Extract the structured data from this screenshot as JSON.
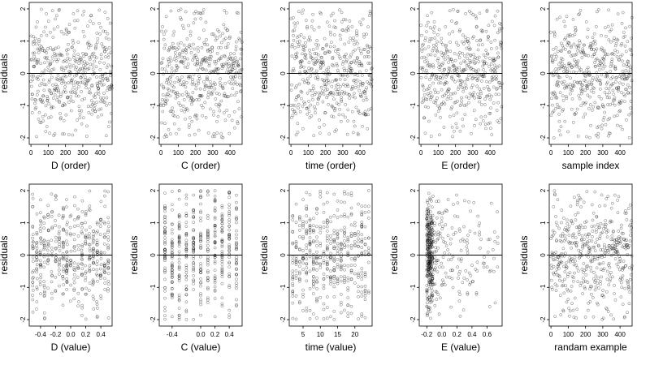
{
  "chart_data": {
    "type": "scatter",
    "layout": "2 rows x 5 columns of residual plots",
    "ylabel": "residuals",
    "ylim": [
      -2.2,
      2.2
    ],
    "yticks": [
      -2,
      -1,
      0,
      1,
      2
    ],
    "reference_line": 0,
    "marker": "open circle",
    "panels": [
      {
        "xlabel": "D (order)",
        "xlim": [
          -10,
          470
        ],
        "xticks": [
          0,
          100,
          200,
          300,
          400
        ],
        "tick_labels": [
          "0",
          "100",
          "200",
          "300",
          "400"
        ],
        "n": 470,
        "pattern": "index",
        "seed": 11
      },
      {
        "xlabel": "C (order)",
        "xlim": [
          -10,
          470
        ],
        "xticks": [
          0,
          100,
          200,
          300,
          400
        ],
        "tick_labels": [
          "0",
          "100",
          "200",
          "300",
          "400"
        ],
        "n": 470,
        "pattern": "index",
        "seed": 23
      },
      {
        "xlabel": "time (order)",
        "xlim": [
          -10,
          470
        ],
        "xticks": [
          0,
          100,
          200,
          300,
          400
        ],
        "tick_labels": [
          "0",
          "100",
          "200",
          "300",
          "400"
        ],
        "n": 470,
        "pattern": "index",
        "seed": 37
      },
      {
        "xlabel": "E (order)",
        "xlim": [
          -10,
          470
        ],
        "xticks": [
          0,
          100,
          200,
          300,
          400
        ],
        "tick_labels": [
          "0",
          "100",
          "200",
          "300",
          "400"
        ],
        "n": 470,
        "pattern": "index",
        "seed": 41
      },
      {
        "xlabel": "sample index",
        "xlim": [
          -10,
          470
        ],
        "xticks": [
          0,
          100,
          200,
          300,
          400
        ],
        "tick_labels": [
          "0",
          "100",
          "200",
          "300",
          "400"
        ],
        "n": 470,
        "pattern": "index",
        "seed": 53
      },
      {
        "xlabel": "D (value)",
        "xlim": [
          -0.55,
          0.55
        ],
        "xticks": [
          -0.4,
          -0.2,
          0.0,
          0.2,
          0.4
        ],
        "tick_labels": [
          "-0.4",
          "-0.2",
          "0.0",
          "0.2",
          "0.4"
        ],
        "n": 470,
        "pattern": "grid-values",
        "seed": 61
      },
      {
        "xlabel": "C (value)",
        "xlim": [
          -0.58,
          0.58
        ],
        "xticks": [
          -0.4,
          0.0,
          0.2,
          0.4
        ],
        "tick_labels": [
          "-0.4",
          "0.0",
          "0.2",
          "0.4"
        ],
        "n": 470,
        "pattern": "discrete-values",
        "levels": [
          -0.5,
          -0.4,
          -0.3,
          -0.2,
          -0.1,
          0.0,
          0.1,
          0.2,
          0.3,
          0.4,
          0.5
        ],
        "seed": 67
      },
      {
        "xlabel": "time (value)",
        "xlim": [
          1,
          25
        ],
        "xticks": [
          5,
          10,
          15,
          20
        ],
        "tick_labels": [
          "5",
          "10",
          "15",
          "20"
        ],
        "n": 470,
        "pattern": "discrete-values",
        "levels": [
          2,
          3,
          4,
          5,
          6,
          7,
          8,
          9,
          10,
          11,
          12,
          13,
          14,
          15,
          16,
          17,
          18,
          19,
          20,
          21,
          22,
          23,
          24
        ],
        "seed": 71
      },
      {
        "xlabel": "E (value)",
        "xlim": [
          -0.3,
          0.8
        ],
        "xticks": [
          -0.2,
          0.0,
          0.2,
          0.4,
          0.6
        ],
        "tick_labels": [
          "-0.2",
          "0.0",
          "0.2",
          "0.4",
          "0.6"
        ],
        "n": 470,
        "pattern": "skewed-values",
        "seed": 79
      },
      {
        "xlabel": "randam example",
        "xlim": [
          -10,
          470
        ],
        "xticks": [
          0,
          100,
          200,
          300,
          400
        ],
        "tick_labels": [
          "0",
          "100",
          "200",
          "300",
          "400"
        ],
        "n": 470,
        "pattern": "index",
        "seed": 83
      }
    ]
  }
}
